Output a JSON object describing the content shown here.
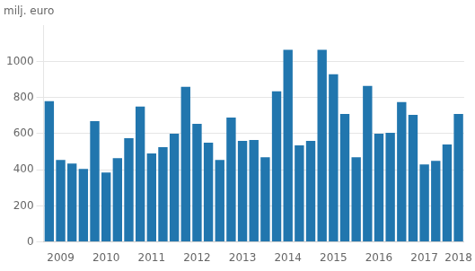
{
  "chart_data": {
    "type": "bar",
    "ylabel": "milj. euro",
    "categories": [
      null,
      "2009",
      null,
      null,
      null,
      "2010",
      null,
      null,
      null,
      "2011",
      null,
      null,
      null,
      "2012",
      null,
      null,
      null,
      "2013",
      null,
      null,
      null,
      "2014",
      null,
      null,
      null,
      "2015",
      null,
      null,
      null,
      "2016",
      null,
      null,
      null,
      "2017",
      null,
      null,
      "2018"
    ],
    "values": [
      780,
      455,
      435,
      405,
      670,
      385,
      465,
      575,
      750,
      490,
      525,
      600,
      860,
      655,
      550,
      455,
      690,
      560,
      565,
      470,
      835,
      1065,
      535,
      560,
      1065,
      930,
      710,
      470,
      865,
      600,
      605,
      775,
      705,
      430,
      450,
      540,
      710
    ],
    "color": "#2176ae",
    "ylim": [
      0,
      1200
    ],
    "yticks": [
      0,
      200,
      400,
      600,
      800,
      1000
    ],
    "grid": true
  }
}
